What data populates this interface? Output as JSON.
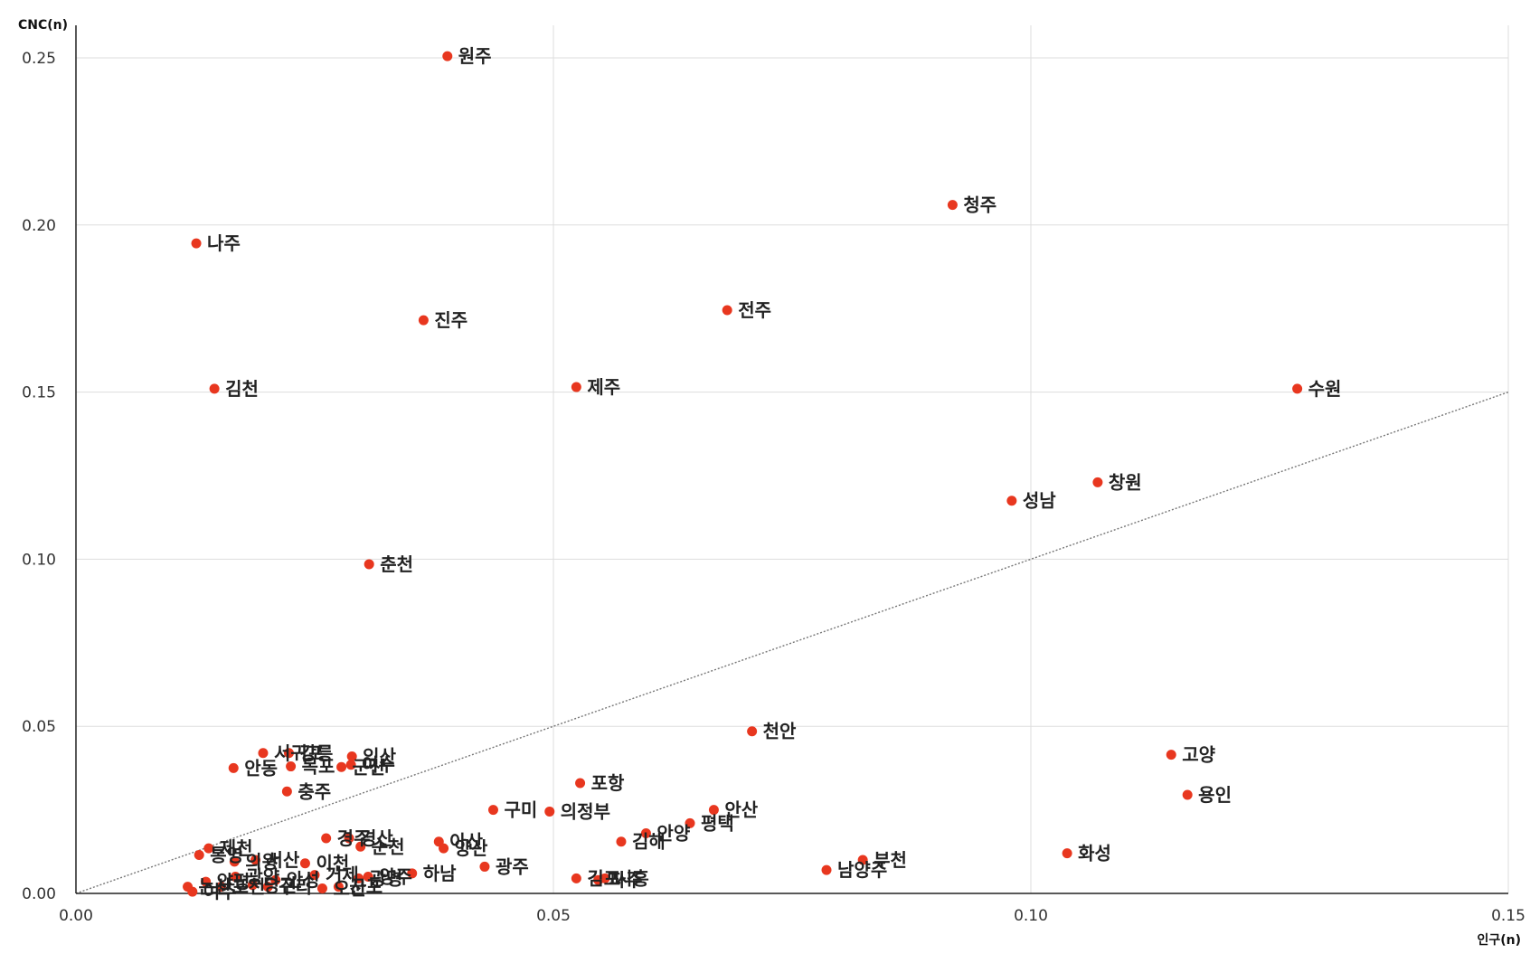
{
  "chart_data": {
    "type": "scatter",
    "xlabel": "인구(n)",
    "ylabel": "CNC(n)",
    "xlim": [
      0,
      0.15
    ],
    "ylim": [
      0,
      0.25
    ],
    "x_ticks": [
      "0.00",
      "0.05",
      "0.10",
      "0.15"
    ],
    "y_ticks": [
      "0.00",
      "0.05",
      "0.10",
      "0.15",
      "0.20",
      "0.25"
    ],
    "grid": true,
    "reference_line": "y = x (dotted)",
    "point_color": "#e8371f",
    "points": [
      {
        "label": "원주",
        "x": 0.0389,
        "y": 0.2505
      },
      {
        "label": "청주",
        "x": 0.0918,
        "y": 0.206
      },
      {
        "label": "나주",
        "x": 0.0126,
        "y": 0.1945
      },
      {
        "label": "전주",
        "x": 0.0682,
        "y": 0.1745
      },
      {
        "label": "진주",
        "x": 0.0364,
        "y": 0.1715
      },
      {
        "label": "김천",
        "x": 0.0145,
        "y": 0.151
      },
      {
        "label": "제주",
        "x": 0.0524,
        "y": 0.1515
      },
      {
        "label": "수원",
        "x": 0.1279,
        "y": 0.151
      },
      {
        "label": "창원",
        "x": 0.107,
        "y": 0.123
      },
      {
        "label": "성남",
        "x": 0.098,
        "y": 0.1175
      },
      {
        "label": "춘천",
        "x": 0.0307,
        "y": 0.0985
      },
      {
        "label": "천안",
        "x": 0.0708,
        "y": 0.0485
      },
      {
        "label": "고양",
        "x": 0.1147,
        "y": 0.0415
      },
      {
        "label": "용인",
        "x": 0.1164,
        "y": 0.0295
      },
      {
        "label": "서귀포",
        "x": 0.0196,
        "y": 0.042
      },
      {
        "label": "강릉",
        "x": 0.0223,
        "y": 0.042
      },
      {
        "label": "익산",
        "x": 0.0289,
        "y": 0.041
      },
      {
        "label": "여수",
        "x": 0.0288,
        "y": 0.0385
      },
      {
        "label": "안동",
        "x": 0.0165,
        "y": 0.0375
      },
      {
        "label": "목포",
        "x": 0.0225,
        "y": 0.038
      },
      {
        "label": "군산",
        "x": 0.0278,
        "y": 0.0378
      },
      {
        "label": "충주",
        "x": 0.0221,
        "y": 0.0305
      },
      {
        "label": "포항",
        "x": 0.0528,
        "y": 0.033
      },
      {
        "label": "구미",
        "x": 0.0437,
        "y": 0.025
      },
      {
        "label": "의정부",
        "x": 0.0496,
        "y": 0.0245
      },
      {
        "label": "평택",
        "x": 0.0643,
        "y": 0.021
      },
      {
        "label": "안산",
        "x": 0.0668,
        "y": 0.025
      },
      {
        "label": "김해",
        "x": 0.0571,
        "y": 0.0155
      },
      {
        "label": "안양",
        "x": 0.0597,
        "y": 0.018
      },
      {
        "label": "제천",
        "x": 0.0139,
        "y": 0.0135
      },
      {
        "label": "통영",
        "x": 0.0129,
        "y": 0.0115
      },
      {
        "label": "의왕",
        "x": 0.0166,
        "y": 0.0095
      },
      {
        "label": "서산",
        "x": 0.0188,
        "y": 0.01
      },
      {
        "label": "이천",
        "x": 0.024,
        "y": 0.009
      },
      {
        "label": "경주",
        "x": 0.0262,
        "y": 0.0165
      },
      {
        "label": "경산",
        "x": 0.0286,
        "y": 0.0165
      },
      {
        "label": "순천",
        "x": 0.0298,
        "y": 0.014
      },
      {
        "label": "아산",
        "x": 0.038,
        "y": 0.0155
      },
      {
        "label": "양산",
        "x": 0.0385,
        "y": 0.0135
      },
      {
        "label": "거제",
        "x": 0.025,
        "y": 0.0055
      },
      {
        "label": "양주",
        "x": 0.0306,
        "y": 0.005
      },
      {
        "label": "하남",
        "x": 0.0352,
        "y": 0.006
      },
      {
        "label": "광주",
        "x": 0.0428,
        "y": 0.008
      },
      {
        "label": "김포",
        "x": 0.0524,
        "y": 0.0045
      },
      {
        "label": "시흥",
        "x": 0.0554,
        "y": 0.0045
      },
      {
        "label": "파주",
        "x": 0.0547,
        "y": 0.004
      },
      {
        "label": "부천",
        "x": 0.0824,
        "y": 0.01
      },
      {
        "label": "남양주",
        "x": 0.0786,
        "y": 0.007
      },
      {
        "label": "화성",
        "x": 0.1038,
        "y": 0.012
      },
      {
        "label": "양평",
        "x": 0.0136,
        "y": 0.0035
      },
      {
        "label": "광양",
        "x": 0.0167,
        "y": 0.005
      },
      {
        "label": "안성",
        "x": 0.0209,
        "y": 0.004
      },
      {
        "label": "광명",
        "x": 0.0296,
        "y": 0.0045
      },
      {
        "label": "논산",
        "x": 0.0117,
        "y": 0.002
      },
      {
        "label": "여주",
        "x": 0.0122,
        "y": 0.0005
      },
      {
        "label": "포천",
        "x": 0.0152,
        "y": 0.002
      },
      {
        "label": "당진",
        "x": 0.0185,
        "y": 0.0025
      },
      {
        "label": "구리",
        "x": 0.0201,
        "y": 0.002
      },
      {
        "label": "오산",
        "x": 0.0258,
        "y": 0.0015
      },
      {
        "label": "군포",
        "x": 0.0275,
        "y": 0.002
      }
    ]
  }
}
